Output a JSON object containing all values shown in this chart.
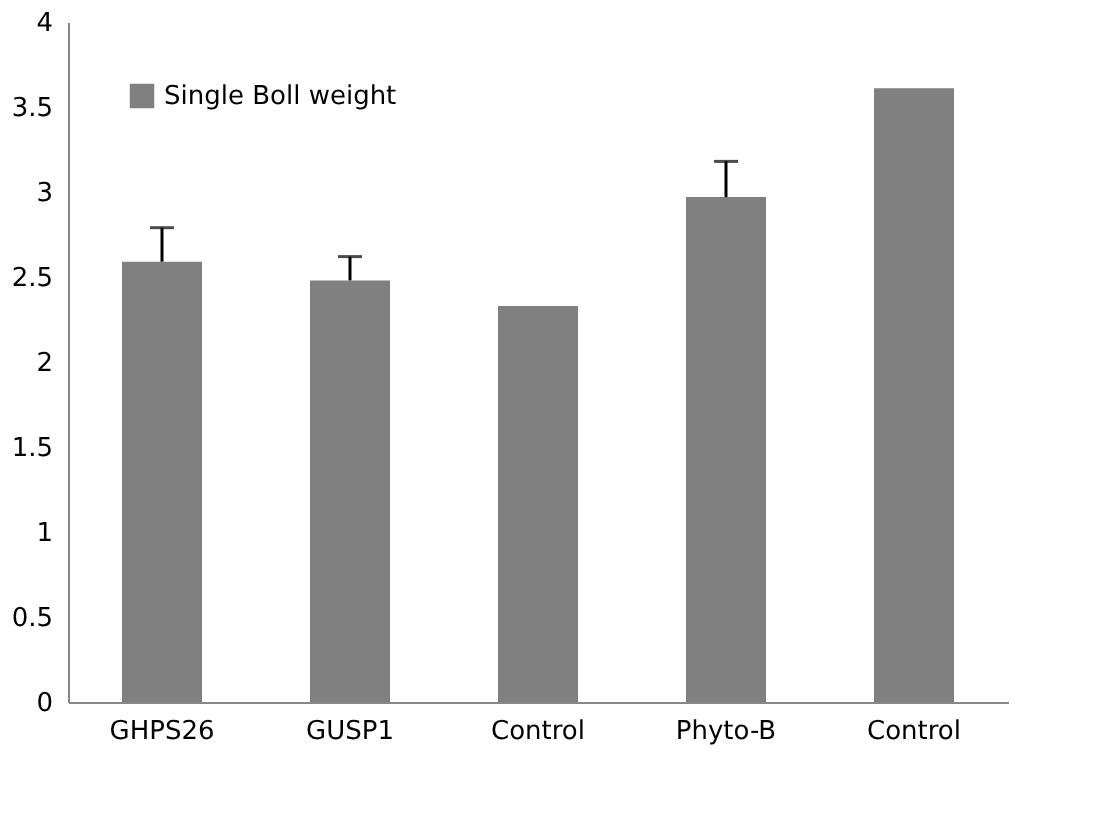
{
  "chart_data": {
    "type": "bar",
    "categories": [
      "GHPS26",
      "GUSP1",
      "Control",
      "Phyto-B",
      "Control"
    ],
    "series": [
      {
        "name": "Single Boll weight",
        "color": "#808080",
        "values": [
          2.59,
          2.48,
          2.33,
          2.97,
          3.61
        ],
        "errors": [
          [
            2.59,
            2.79
          ],
          [
            2.48,
            2.62
          ],
          null,
          [
            2.97,
            3.18
          ],
          null
        ]
      }
    ],
    "ylim": [
      0,
      4
    ],
    "yticks": [
      0,
      0.5,
      1,
      1.5,
      2,
      2.5,
      3,
      3.5,
      4
    ],
    "grid": false,
    "legend": "top left"
  }
}
